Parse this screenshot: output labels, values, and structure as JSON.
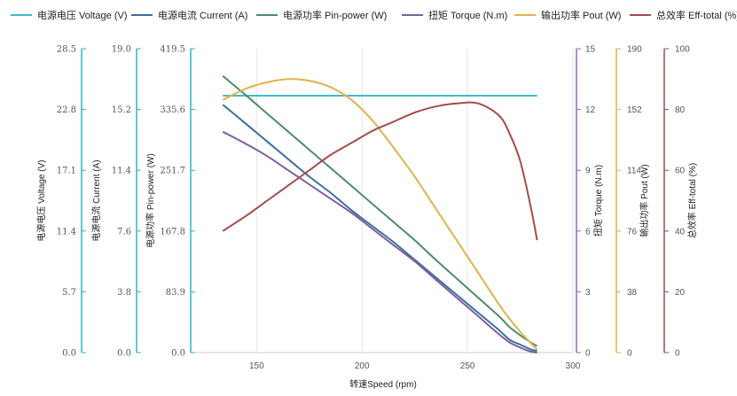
{
  "chart_data": {
    "type": "line",
    "xlabel": "转速Speed (rpm)",
    "x_ticks": [
      "150",
      "200",
      "250",
      "300"
    ],
    "x_range": [
      120,
      300
    ],
    "grid": true,
    "legend_position": "top",
    "x": [
      134,
      145,
      155,
      165,
      175,
      185,
      195,
      205,
      215,
      225,
      235,
      245,
      255,
      265,
      270,
      275,
      280,
      283
    ],
    "axes": [
      {
        "id": "voltage",
        "side": "left",
        "label": "电源电压 Voltage (V)",
        "ticks": [
          "0.0",
          "5.7",
          "11.4",
          "17.1",
          "22.8",
          "28.5"
        ],
        "range": [
          0,
          28.5
        ],
        "color": "#2bb5c8"
      },
      {
        "id": "current",
        "side": "left",
        "label": "电源电流 Current (A)",
        "ticks": [
          "0.0",
          "3.8",
          "7.6",
          "11.4",
          "15.2",
          "19.0"
        ],
        "range": [
          0,
          19.0
        ],
        "color": "#2bb5c8"
      },
      {
        "id": "power",
        "side": "left",
        "label": "电源功率 Pin-power (W)",
        "ticks": [
          "0.0",
          "83.9",
          "167.8",
          "251.7",
          "335.6",
          "419.5"
        ],
        "range": [
          0,
          419.5
        ],
        "color": "#2bb5c8"
      },
      {
        "id": "torque",
        "side": "right",
        "label": "扭矩 Torque (N.m)",
        "ticks": [
          "0",
          "3",
          "6",
          "9",
          "12",
          "15"
        ],
        "range": [
          0,
          15
        ],
        "color": "#8c6bb1"
      },
      {
        "id": "pout",
        "side": "right",
        "label": "输出功率 Pout (W)",
        "ticks": [
          "0",
          "38",
          "76",
          "114",
          "152",
          "190"
        ],
        "range": [
          0,
          190
        ],
        "color": "#e2b24c"
      },
      {
        "id": "eff",
        "side": "right",
        "label": "总效率 Eff-total (%)",
        "ticks": [
          "0",
          "20",
          "40",
          "60",
          "80",
          "100"
        ],
        "range": [
          0,
          100
        ],
        "color": "#a84a4a"
      }
    ],
    "series": [
      {
        "name": "电源电压 Voltage (V)",
        "axis": "voltage",
        "color": "#3dbdcc",
        "values": [
          24.1,
          24.1,
          24.1,
          24.1,
          24.1,
          24.1,
          24.1,
          24.1,
          24.1,
          24.1,
          24.1,
          24.1,
          24.1,
          24.1,
          24.1,
          24.1,
          24.1,
          24.1
        ]
      },
      {
        "name": "电源电流 Current (A)",
        "axis": "current",
        "color": "#3c6f9e",
        "values": [
          15.5,
          14.3,
          13.2,
          12.1,
          11.0,
          10.0,
          8.9,
          7.9,
          6.9,
          5.8,
          4.7,
          3.6,
          2.5,
          1.4,
          0.8,
          0.5,
          0.2,
          0.1
        ]
      },
      {
        "name": "电源功率 Pin-power (W)",
        "axis": "power",
        "color": "#4e8a6e",
        "values": [
          382,
          355,
          330,
          305,
          280,
          255,
          230,
          205,
          180,
          155,
          128,
          102,
          76,
          50,
          35,
          24,
          14,
          9
        ]
      },
      {
        "name": "扭矩 Torque (N.m)",
        "axis": "torque",
        "color": "#7e5f9e",
        "values": [
          10.9,
          10.3,
          9.7,
          9.0,
          8.3,
          7.6,
          6.9,
          6.1,
          5.3,
          4.5,
          3.6,
          2.7,
          1.8,
          0.9,
          0.5,
          0.25,
          0.05,
          0.0
        ]
      },
      {
        "name": "输出功率 Pout (W)",
        "axis": "pout",
        "color": "#e2b24c",
        "values": [
          158,
          165,
          169,
          171,
          170,
          166,
          158,
          145,
          128,
          110,
          90,
          70,
          50,
          30,
          21,
          13,
          6,
          2
        ]
      },
      {
        "name": "总效率 Eff-total (%)",
        "axis": "eff",
        "color": "#a84a4a",
        "values": [
          40,
          45,
          50,
          55,
          60,
          65,
          69,
          73,
          76,
          79,
          81,
          82,
          82,
          78,
          72,
          63,
          48,
          37
        ]
      }
    ]
  }
}
